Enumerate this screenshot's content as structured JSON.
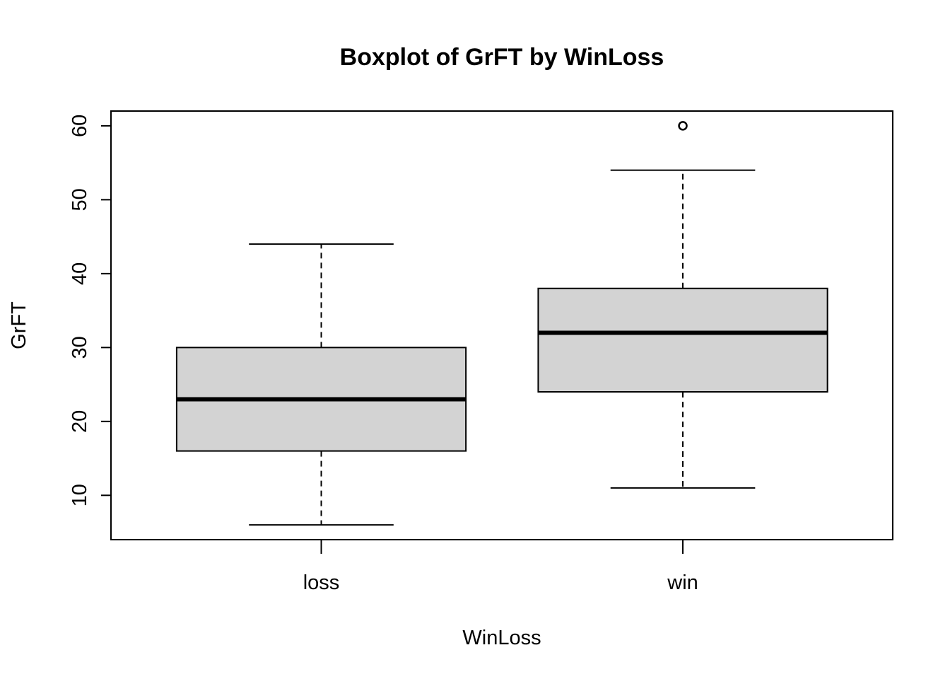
{
  "chart_data": {
    "type": "boxplot",
    "title": "Boxplot of GrFT by WinLoss",
    "xlabel": "WinLoss",
    "ylabel": "GrFT",
    "ylim": [
      4,
      62
    ],
    "yticks": [
      "10",
      "20",
      "30",
      "40",
      "50",
      "60"
    ],
    "grid": false,
    "box_fill": "#d3d3d3",
    "line_color": "#000000",
    "categories": [
      "loss",
      "win"
    ],
    "boxes": [
      {
        "category": "loss",
        "whisker_low": 6,
        "q1": 16,
        "median": 23,
        "q3": 30,
        "whisker_high": 44,
        "outliers": []
      },
      {
        "category": "win",
        "whisker_low": 11,
        "q1": 24,
        "median": 32,
        "q3": 38,
        "whisker_high": 54,
        "outliers": [
          60
        ]
      }
    ]
  }
}
